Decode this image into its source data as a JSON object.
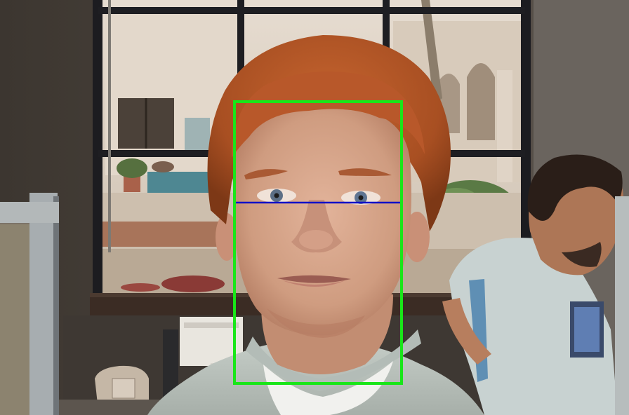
{
  "image": {
    "subject": "portrait",
    "annotations": {
      "face_box_color": "#19e619",
      "eye_line_color": "#1010c8"
    },
    "palette": {
      "wall": "#4a423b",
      "window_frame": "#1e1e22",
      "hair": "#b4592a",
      "skin": "#d7a588",
      "shirt": "#b9c1bb",
      "background_person_shirt": "#c7d1d0"
    }
  }
}
